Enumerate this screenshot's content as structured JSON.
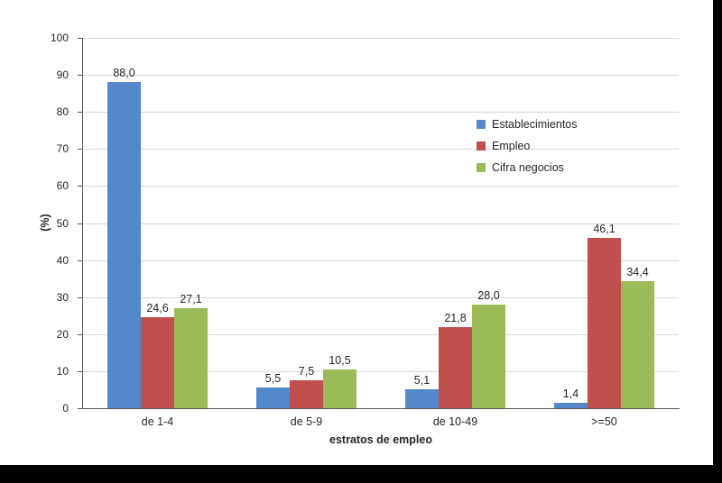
{
  "window": {
    "background_color": "#000000",
    "chart_background_color": "#ffffff"
  },
  "chart_data": {
    "type": "bar",
    "title": "",
    "categories": [
      "de 1-4",
      "de 5-9",
      "de 10-49",
      ">=50"
    ],
    "series": [
      {
        "name": "Establecimientos",
        "color": "#5588CB",
        "values": [
          88.0,
          5.5,
          5.1,
          1.4
        ]
      },
      {
        "name": "Empleo",
        "color": "#C0504D",
        "values": [
          24.6,
          7.5,
          21.8,
          46.1
        ]
      },
      {
        "name": "Cifra negocios",
        "color": "#9BBB59",
        "values": [
          27.1,
          10.5,
          28.0,
          34.4
        ]
      }
    ],
    "data_labels": {
      "show": true,
      "decimals": 1,
      "decimal_separator": ",",
      "labels": [
        [
          "88,0",
          "5,5",
          "5,1",
          "1,4"
        ],
        [
          "24,6",
          "7,5",
          "21,8",
          "46,1"
        ],
        [
          "27,1",
          "10,5",
          "28,0",
          "34,4"
        ]
      ]
    },
    "xlabel": "estratos de empleo",
    "ylabel": "(%)",
    "ylim": [
      0,
      100
    ],
    "ytick_step": 10,
    "yticks": [
      0,
      10,
      20,
      30,
      40,
      50,
      60,
      70,
      80,
      90,
      100
    ],
    "grid": true,
    "legend_position": "inside-right",
    "style": {
      "gridline_color": "#d9d9d9",
      "axis_color": "#595959",
      "text_color": "#262626"
    }
  }
}
